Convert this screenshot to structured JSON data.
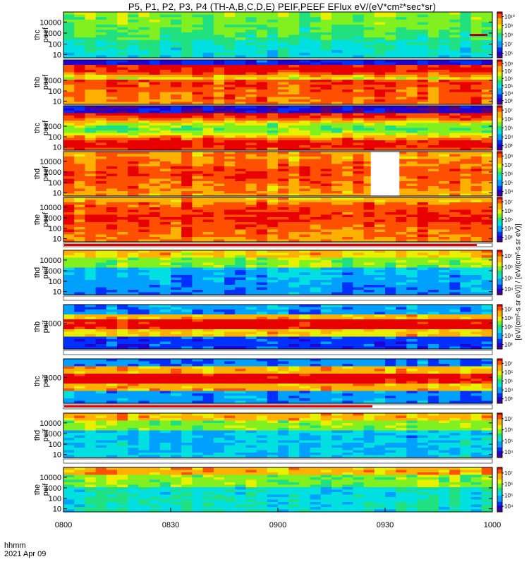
{
  "window": {
    "title": "P5, P1, P2, P3, P4 (TH-A,B,C,D,E) PEIF,PEEF EFlux eV/(eV*cm²*sec*sr)"
  },
  "colorbar_title": "[eV/(cm²-s sr eV)] / [eV/(cm²-s sr eV)]",
  "footer": {
    "line1": "hhmm",
    "line2": "2021 Apr 09"
  },
  "colors": {
    "scale": [
      "#5a0078",
      "#2200d0",
      "#0030ff",
      "#00a0ff",
      "#00e0e0",
      "#20e080",
      "#80f020",
      "#e8f000",
      "#ffb000",
      "#ff5000",
      "#e80000"
    ],
    "saturation_red": "#dd0000",
    "saturation_black": "#000000"
  },
  "chart_data": {
    "type": "heatmap",
    "title": "P5, P1, P2, P3, P4 (TH-A,B,C,D,E) PEIF,PEEF EFlux eV/(eV*cm²*sec*sr)",
    "x_ticks": [
      "0800",
      "0830",
      "0900",
      "0930",
      "1000"
    ],
    "x_range": [
      "08:00",
      "10:00"
    ],
    "y_scale": "log",
    "panels": [
      {
        "name": "thc peef",
        "ylabel": [
          "thc",
          "peef"
        ],
        "yticks": [
          "10",
          "100",
          "1000",
          "10000"
        ],
        "cb_ticks": [
          "10⁶",
          "10⁷",
          "10⁸",
          "10⁹",
          "10¹⁰"
        ],
        "cb_range": [
          100000.0,
          10000000000.0
        ]
      },
      {
        "name": "thb peef",
        "ylabel": [
          "thb",
          "peef"
        ],
        "yticks": [
          "10",
          "100",
          "1000"
        ],
        "cb_ticks": [
          "10³",
          "10⁴",
          "10⁵",
          "10⁶",
          "10⁷",
          "10⁸"
        ],
        "cb_range": [
          1000.0,
          100000000.0
        ]
      },
      {
        "name": "thc peef",
        "ylabel": [
          "thc",
          "peef"
        ],
        "yticks": [
          "10",
          "100",
          "1000"
        ],
        "cb_ticks": [
          "10³",
          "10⁴",
          "10⁵",
          "10⁶",
          "10⁷"
        ],
        "cb_range": [
          1000.0,
          10000000.0
        ]
      },
      {
        "name": "thd peef",
        "ylabel": [
          "thd",
          "peef"
        ],
        "yticks": [
          "10",
          "100",
          "1000",
          "10000"
        ],
        "cb_ticks": [
          "10⁴",
          "10⁵",
          "10⁶",
          "10⁷",
          "10⁸"
        ],
        "cb_range": [
          10000.0,
          100000000.0
        ],
        "data_gap": [
          "09:26",
          "09:34"
        ]
      },
      {
        "name": "the peef",
        "ylabel": [
          "the",
          "peef"
        ],
        "yticks": [
          "10",
          "100",
          "1000",
          "10000"
        ],
        "cb_ticks": [
          "10³",
          "10⁴",
          "10⁵",
          "10⁶",
          "10⁷"
        ],
        "cb_range": [
          1000.0,
          10000000.0
        ]
      },
      {
        "name": "thd peif",
        "ylabel": [
          "thd",
          "peif"
        ],
        "yticks": [
          "10",
          "100",
          "1000",
          "10000"
        ],
        "cb_ticks": [
          "10⁴",
          "10⁵",
          "10⁶",
          "10⁷"
        ],
        "cb_range": [
          10000.0,
          10000000.0
        ]
      },
      {
        "name": "thb peif",
        "ylabel": [
          "thb",
          "peif"
        ],
        "yticks": [
          "1000"
        ],
        "cb_ticks": [
          "10³",
          "10⁴",
          "10⁵",
          "10⁶",
          "10⁷"
        ],
        "cb_range": [
          1000.0,
          10000000.0
        ]
      },
      {
        "name": "thc peif",
        "ylabel": [
          "thc",
          "peif"
        ],
        "yticks": [
          "1000"
        ],
        "cb_ticks": [
          "10³",
          "10⁴",
          "10⁵",
          "10⁶",
          "10⁷"
        ],
        "cb_range": [
          1000.0,
          10000000.0
        ]
      },
      {
        "name": "thd peif",
        "ylabel": [
          "thd",
          "peif"
        ],
        "yticks": [
          "10",
          "100",
          "1000",
          "10000"
        ],
        "cb_ticks": [
          "10⁴",
          "10⁵",
          "10⁶",
          "10⁷"
        ],
        "cb_range": [
          10000.0,
          10000000.0
        ]
      },
      {
        "name": "the peif",
        "ylabel": [
          "the",
          "peif"
        ],
        "yticks": [
          "10",
          "100",
          "1000",
          "10000"
        ],
        "cb_ticks": [
          "10⁴",
          "10⁵",
          "10⁶",
          "10⁷"
        ],
        "cb_range": [
          10000.0,
          10000000.0
        ]
      }
    ]
  }
}
